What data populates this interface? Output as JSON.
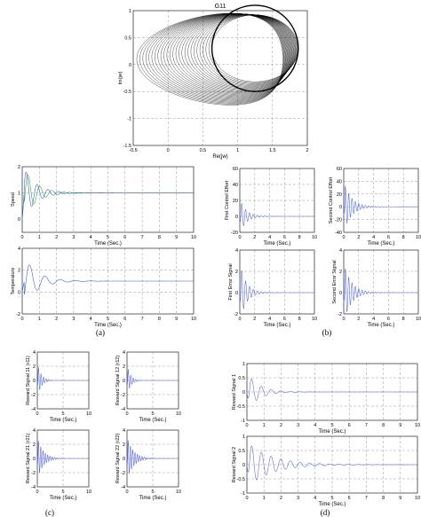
{
  "captions": [
    "(a)",
    "(b)",
    "(c)",
    "(d)"
  ],
  "chart_data": [
    {
      "id": "nyquist",
      "type": "line",
      "title": "G11",
      "xlabel": "Re(jw)",
      "ylabel": "Im(jw)",
      "xlim": [
        -0.5,
        2
      ],
      "ylim": [
        -1.5,
        1
      ],
      "xticks": [
        "-0.5",
        "0",
        "0.5",
        "1",
        "1.5",
        "2"
      ],
      "yticks": [
        "-1.5",
        "-1",
        "-0.5",
        "0",
        "0.5",
        "1"
      ],
      "grid": true,
      "color": "#000000",
      "loops": 26,
      "series": [
        {
          "curve": "outer-envelope",
          "x": [
            1.05,
            1.85,
            1.75,
            1.2,
            0.6,
            0.1,
            -0.35,
            -0.2,
            0.1,
            0.7
          ],
          "y": [
            0.85,
            0.55,
            -0.4,
            -0.8,
            -0.85,
            -0.55,
            0.0,
            0.45,
            0.7,
            0.85
          ]
        },
        {
          "curve": "final-circle",
          "center": [
            1.25,
            0.3
          ],
          "radius": 0.62
        }
      ]
    },
    {
      "id": "speed",
      "type": "line",
      "xlabel": "Time (Sec.)",
      "ylabel": "Speed",
      "xlim": [
        0,
        10
      ],
      "ylim": [
        -0.5,
        2
      ],
      "xticks": [
        "0",
        "1",
        "2",
        "3",
        "4",
        "5",
        "6",
        "7",
        "8",
        "9",
        "10"
      ],
      "yticks": [
        "0",
        "1",
        "2"
      ],
      "steady": 1.0,
      "amp": 1.1,
      "decay": 1.4,
      "freq": 9,
      "colors": [
        "#22aa22",
        "#3355dd"
      ],
      "grid": true
    },
    {
      "id": "temperature",
      "type": "line",
      "xlabel": "Time (Sec.)",
      "ylabel": "Temperature",
      "xlim": [
        0,
        10
      ],
      "ylim": [
        -2,
        4
      ],
      "xticks": [
        "0",
        "1",
        "2",
        "3",
        "4",
        "5",
        "6",
        "7",
        "8",
        "9",
        "10"
      ],
      "yticks": [
        "-2",
        "0",
        "2",
        "4"
      ],
      "steady": 1.0,
      "amp": 2.6,
      "decay": 1.3,
      "freq": 7,
      "colors": [
        "#3355dd"
      ],
      "grid": true
    },
    {
      "id": "first-control-effort",
      "type": "line",
      "xlabel": "Time (Sec.)",
      "ylabel": "First Control Effort",
      "xlim": [
        0,
        10
      ],
      "ylim": [
        -20,
        60
      ],
      "xticks": [
        "0",
        "2",
        "4",
        "6",
        "8",
        "10"
      ],
      "yticks": [
        "-20",
        "0",
        "20",
        "40",
        "60"
      ],
      "steady": 0,
      "amp": 22,
      "decay": 1.2,
      "freq": 12,
      "colors": [
        "#5566dd"
      ],
      "grid": true
    },
    {
      "id": "second-control-effort",
      "type": "line",
      "xlabel": "Time (Sec.)",
      "ylabel": "Second Control Effort",
      "xlim": [
        0,
        10
      ],
      "ylim": [
        -40,
        60
      ],
      "xticks": [
        "0",
        "2",
        "4",
        "6",
        "8",
        "10"
      ],
      "yticks": [
        "-40",
        "-20",
        "0",
        "20",
        "40",
        "60"
      ],
      "steady": 0,
      "amp": 40,
      "decay": 1.0,
      "freq": 14,
      "colors": [
        "#5566dd"
      ],
      "grid": true
    },
    {
      "id": "first-error-signal",
      "type": "line",
      "xlabel": "Time (Sec.)",
      "ylabel": "First Error Signal",
      "xlim": [
        0,
        10
      ],
      "ylim": [
        -2,
        4
      ],
      "xticks": [
        "0",
        "2",
        "4",
        "6",
        "8",
        "10"
      ],
      "yticks": [
        "-2",
        "0",
        "2",
        "4"
      ],
      "steady": 0,
      "amp": 2.8,
      "decay": 1.2,
      "freq": 12,
      "colors": [
        "#5566dd"
      ],
      "grid": true
    },
    {
      "id": "second-error-signal",
      "type": "line",
      "xlabel": "Time (Sec.)",
      "ylabel": "Second Error Signal",
      "xlim": [
        0,
        10
      ],
      "ylim": [
        -2,
        4
      ],
      "xticks": [
        "0",
        "2",
        "4",
        "6",
        "8",
        "10"
      ],
      "yticks": [
        "-2",
        "0",
        "2",
        "4"
      ],
      "steady": 0,
      "amp": 2.8,
      "decay": 1.0,
      "freq": 14,
      "colors": [
        "#5566dd"
      ],
      "grid": true
    },
    {
      "id": "reward-11",
      "type": "line",
      "xlabel": "Time (Sec.)",
      "ylabel": "Reward Signal 11 (r11)",
      "xlim": [
        0,
        10
      ],
      "ylim": [
        -4,
        4
      ],
      "xticks": [
        "0",
        "5",
        "10"
      ],
      "yticks": [
        "-4",
        "-2",
        "0",
        "2",
        "4"
      ],
      "steady": 0,
      "amp": 2.5,
      "decay": 1.4,
      "freq": 13,
      "colors": [
        "#5566dd"
      ],
      "grid": true
    },
    {
      "id": "reward-12",
      "type": "line",
      "xlabel": "Time (Sec.)",
      "ylabel": "Reward Signal 12 (r12)",
      "xlim": [
        0,
        10
      ],
      "ylim": [
        -4,
        4
      ],
      "xticks": [
        "0",
        "5",
        "10"
      ],
      "yticks": [
        "-4",
        "-2",
        "0",
        "2",
        "4"
      ],
      "steady": 0,
      "amp": 2.2,
      "decay": 1.5,
      "freq": 13,
      "colors": [
        "#5566dd"
      ],
      "grid": true
    },
    {
      "id": "reward-21",
      "type": "line",
      "xlabel": "Time (Sec.)",
      "ylabel": "Reward Signal 21 (r21)",
      "xlim": [
        0,
        10
      ],
      "ylim": [
        -4,
        4
      ],
      "xticks": [
        "0",
        "5",
        "10"
      ],
      "yticks": [
        "-4",
        "-2",
        "0",
        "2",
        "4"
      ],
      "steady": 0,
      "amp": 3.0,
      "decay": 0.9,
      "freq": 14,
      "colors": [
        "#5566dd"
      ],
      "grid": true
    },
    {
      "id": "reward-22",
      "type": "line",
      "xlabel": "Time (Sec.)",
      "ylabel": "Reward Signal 22 (r22)",
      "xlim": [
        0,
        10
      ],
      "ylim": [
        -4,
        4
      ],
      "xticks": [
        "0",
        "5",
        "10"
      ],
      "yticks": [
        "-4",
        "-2",
        "0",
        "2",
        "4"
      ],
      "steady": 0,
      "amp": 3.0,
      "decay": 0.8,
      "freq": 14,
      "colors": [
        "#5566dd"
      ],
      "grid": true
    },
    {
      "id": "reward-1",
      "type": "line",
      "xlabel": "Time (Sec.)",
      "ylabel": "Reward Signal 1",
      "xlim": [
        0,
        10
      ],
      "ylim": [
        -1,
        1
      ],
      "xticks": [
        "0",
        "1",
        "2",
        "3",
        "4",
        "5",
        "6",
        "7",
        "8",
        "9",
        "10"
      ],
      "yticks": [
        "-1",
        "-0.5",
        "0",
        "0.5",
        "1"
      ],
      "steady": 0,
      "amp": 0.7,
      "decay": 1.5,
      "freq": 11,
      "colors": [
        "#5566dd"
      ],
      "grid": true
    },
    {
      "id": "reward-2",
      "type": "line",
      "xlabel": "Time (Sec.)",
      "ylabel": "Reward Signal 2",
      "xlim": [
        0,
        10
      ],
      "ylim": [
        -1,
        1
      ],
      "xticks": [
        "0",
        "1",
        "2",
        "3",
        "4",
        "5",
        "6",
        "7",
        "8",
        "9",
        "10"
      ],
      "yticks": [
        "-1",
        "-0.5",
        "0",
        "0.5",
        "1"
      ],
      "steady": 0,
      "amp": 0.8,
      "decay": 0.7,
      "freq": 11,
      "colors": [
        "#5566dd"
      ],
      "grid": true
    }
  ]
}
